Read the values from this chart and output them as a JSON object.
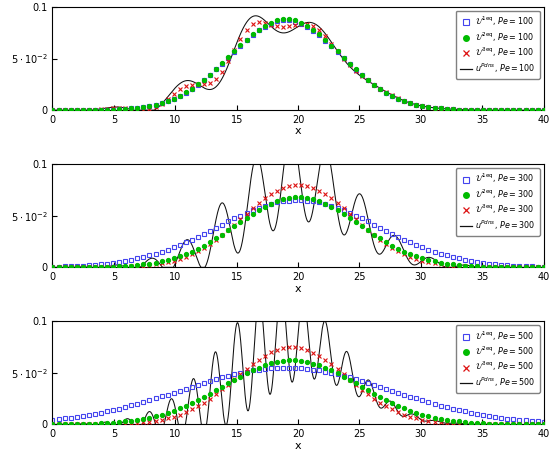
{
  "xlim": [
    0,
    40
  ],
  "ylim": [
    0,
    0.1
  ],
  "xticks": [
    0,
    5,
    10,
    15,
    20,
    25,
    30,
    35,
    40
  ],
  "xlabel": "x",
  "pe_values": [
    100,
    300,
    500
  ],
  "colors": {
    "u1eq": "#4444ee",
    "u2eq": "#00bb00",
    "u3eq": "#dd1111",
    "udns": "#111111"
  }
}
